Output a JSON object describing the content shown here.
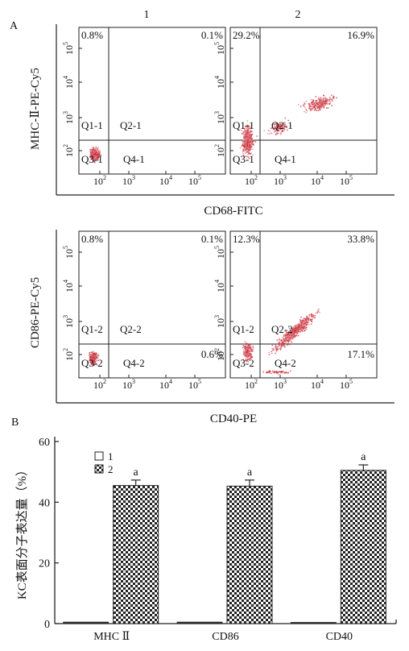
{
  "panel_a": {
    "label": "A",
    "col_labels": [
      "1",
      "2"
    ],
    "row1": {
      "ylabel": "MHC-Ⅱ-PE-Cy5",
      "xlabel": "CD68-FITC",
      "plots": [
        {
          "q_tl": "0.8%",
          "q_tr": "0.1%",
          "q_br": "",
          "labels": [
            "Q1-1",
            "Q2-1",
            "Q3-1",
            "Q4-1"
          ]
        },
        {
          "q_tl": "29.2%",
          "q_tr": "16.9%",
          "q_br": "",
          "labels": [
            "Q1-1",
            "Q2-1",
            "Q3-1",
            "Q4-1"
          ]
        }
      ]
    },
    "row2": {
      "ylabel": "CD86-PE-Cy5",
      "xlabel": "CD40-PE",
      "plots": [
        {
          "q_tl": "0.8%",
          "q_tr": "0.1%",
          "q_br": "0.6%",
          "labels": [
            "Q1-2",
            "Q2-2",
            "Q3-2",
            "Q4-2"
          ]
        },
        {
          "q_tl": "12.3%",
          "q_tr": "33.8%",
          "q_br": "17.1%",
          "labels": [
            "Q1-2",
            "Q2-2",
            "Q3-2",
            "Q4-2"
          ]
        }
      ]
    },
    "ticks": [
      "10",
      "10",
      "10",
      "10"
    ],
    "tick_exps": [
      "2",
      "3",
      "4",
      "5"
    ]
  },
  "chart_data": {
    "type": "bar",
    "label": "B",
    "categories": [
      "MHC Ⅱ",
      "CD86",
      "CD40"
    ],
    "series": [
      {
        "name": "1",
        "values": [
          0.5,
          0.5,
          0.4
        ]
      },
      {
        "name": "2",
        "values": [
          45.5,
          45.3,
          50.5
        ],
        "errors": [
          1.8,
          2.0,
          1.8
        ],
        "annotations": [
          "a",
          "a",
          "a"
        ]
      }
    ],
    "ylabel": "KC表面分子表达量（%）",
    "ylim": [
      0,
      60
    ],
    "yticks": [
      0,
      20,
      40,
      60
    ],
    "legend_position": "top-left"
  }
}
